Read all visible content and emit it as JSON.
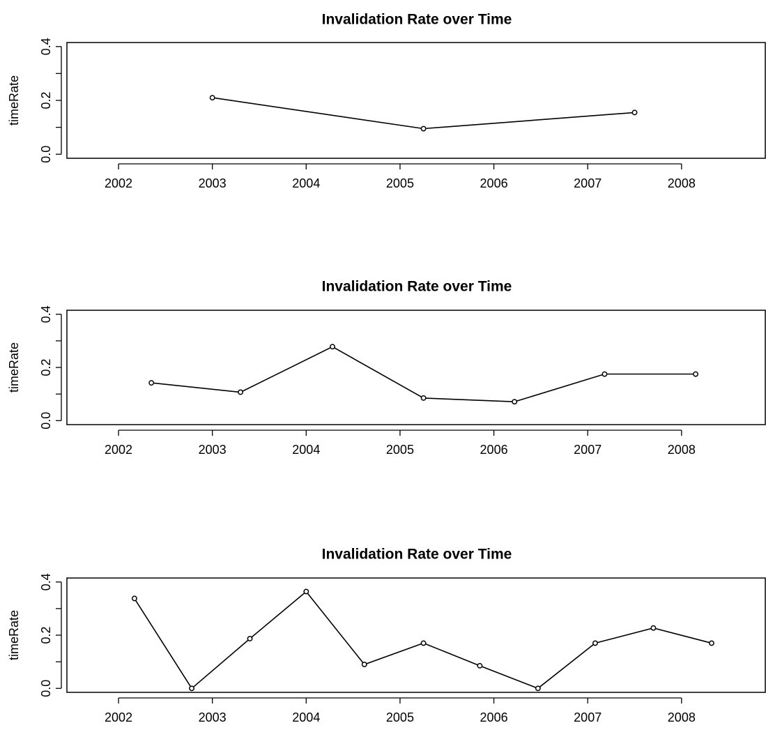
{
  "chart_data": [
    {
      "type": "line",
      "title": "Invalidation Rate over Time",
      "xlabel": "",
      "ylabel": "timeRate",
      "xlim": [
        2001.45,
        2008.9
      ],
      "ylim": [
        -0.015,
        0.415
      ],
      "xticks": [
        2002,
        2003,
        2004,
        2005,
        2006,
        2007,
        2008
      ],
      "xtick_labels": [
        "2002",
        "2003",
        "2004",
        "2005",
        "2006",
        "2007",
        "2008"
      ],
      "yticks": [
        0.0,
        0.1,
        0.2,
        0.3,
        0.4
      ],
      "ytick_labels": [
        "0.0",
        "",
        "0.2",
        "",
        "0.4"
      ],
      "grid": false,
      "x": [
        2003.0,
        2005.25,
        2007.5
      ],
      "values": [
        0.21,
        0.095,
        0.155
      ]
    },
    {
      "type": "line",
      "title": "Invalidation Rate over Time",
      "xlabel": "",
      "ylabel": "timeRate",
      "xlim": [
        2001.45,
        2008.9
      ],
      "ylim": [
        -0.015,
        0.415
      ],
      "xticks": [
        2002,
        2003,
        2004,
        2005,
        2006,
        2007,
        2008
      ],
      "xtick_labels": [
        "2002",
        "2003",
        "2004",
        "2005",
        "2006",
        "2007",
        "2008"
      ],
      "yticks": [
        0.0,
        0.1,
        0.2,
        0.3,
        0.4
      ],
      "ytick_labels": [
        "0.0",
        "",
        "0.2",
        "",
        "0.4"
      ],
      "grid": false,
      "x": [
        2002.35,
        2003.3,
        2004.28,
        2005.25,
        2006.22,
        2007.18,
        2008.15
      ],
      "values": [
        0.142,
        0.107,
        0.278,
        0.085,
        0.071,
        0.175,
        0.175
      ]
    },
    {
      "type": "line",
      "title": "Invalidation Rate over Time",
      "xlabel": "",
      "ylabel": "timeRate",
      "xlim": [
        2001.45,
        2008.9
      ],
      "ylim": [
        -0.015,
        0.415
      ],
      "xticks": [
        2002,
        2003,
        2004,
        2005,
        2006,
        2007,
        2008
      ],
      "xtick_labels": [
        "2002",
        "2003",
        "2004",
        "2005",
        "2006",
        "2007",
        "2008"
      ],
      "yticks": [
        0.0,
        0.1,
        0.2,
        0.3,
        0.4
      ],
      "ytick_labels": [
        "0.0",
        "",
        "0.2",
        "",
        "0.4"
      ],
      "grid": false,
      "x": [
        2002.17,
        2002.78,
        2003.4,
        2004.0,
        2004.62,
        2005.25,
        2005.85,
        2006.47,
        2007.08,
        2007.7,
        2008.32
      ],
      "values": [
        0.338,
        0.0,
        0.187,
        0.364,
        0.09,
        0.17,
        0.085,
        0.0,
        0.17,
        0.227,
        0.17
      ]
    }
  ]
}
